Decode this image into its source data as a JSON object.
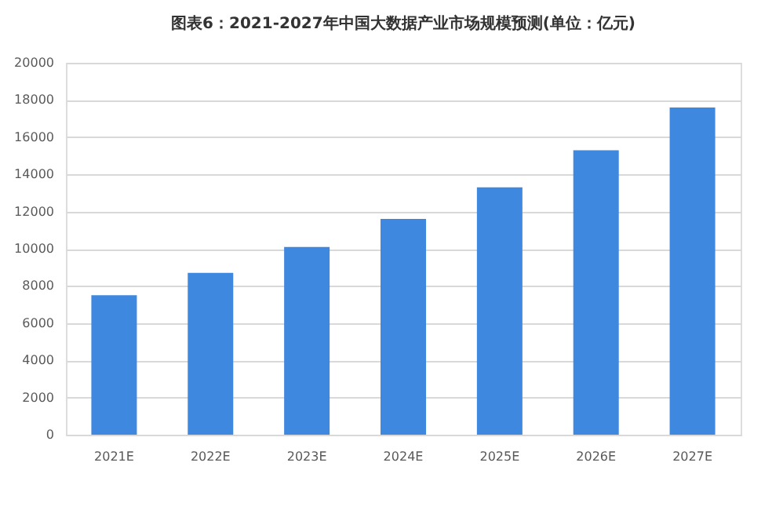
{
  "chart_data": {
    "type": "bar",
    "title": "图表6：2021-2027年中国大数据产业市场规模预测(单位：亿元)",
    "categories": [
      "2021E",
      "2022E",
      "2023E",
      "2024E",
      "2025E",
      "2026E",
      "2027E"
    ],
    "values": [
      7500,
      8700,
      10100,
      11600,
      13300,
      15300,
      17600
    ],
    "color": "#3f88e0",
    "ylim": [
      0,
      20000
    ],
    "yticks": [
      0,
      2000,
      4000,
      6000,
      8000,
      10000,
      12000,
      14000,
      16000,
      18000,
      20000
    ],
    "grid": "y"
  }
}
